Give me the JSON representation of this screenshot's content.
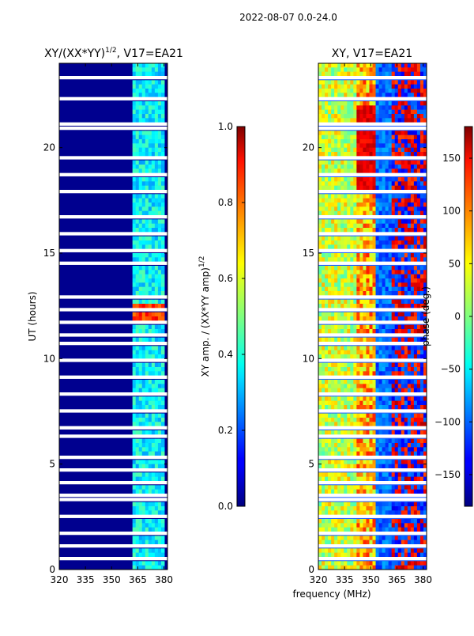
{
  "figure_title": "2022-08-07 0.0-24.0",
  "colors": {
    "band_bg": "#00008f",
    "gap": "#ffffff",
    "axis": "#000000"
  },
  "chart_data": [
    {
      "type": "heatmap",
      "title": "XY/(XX*YY)^1/2, V17=EA21",
      "title_base": "XY/(XX*YY)",
      "title_sup": "1/2",
      "title_tail": ", V17=EA21",
      "xlabel": "",
      "ylabel": "UT (hours)",
      "xlim": [
        320,
        382
      ],
      "ylim": [
        0,
        24
      ],
      "xticks": [
        "320",
        "335",
        "350",
        "365",
        "380"
      ],
      "xtick_values": [
        320,
        335,
        350,
        365,
        380
      ],
      "yticks": [
        "0",
        "5",
        "10",
        "15",
        "20"
      ],
      "ytick_values": [
        0,
        5,
        10,
        15,
        20
      ],
      "colorbar": {
        "label": "XY amp. / (XX*YY amp)^1/2",
        "label_base": "XY amp. / (XX*YY amp)",
        "label_sup": "1/2",
        "range": [
          0.0,
          1.0
        ],
        "ticks": [
          "0.0",
          "0.2",
          "0.4",
          "0.6",
          "0.8",
          "1.0"
        ],
        "tick_values": [
          0.0,
          0.2,
          0.4,
          0.6,
          0.8,
          1.0
        ]
      },
      "notes": "low normalized amplitude below ~362 MHz; higher values (0.3-0.5) in 362-380 MHz; peak ~0.9 near 11.7-12.3 h"
    },
    {
      "type": "heatmap",
      "title": "XY, V17=EA21",
      "xlabel": "frequency (MHz)",
      "ylabel": "",
      "xlim": [
        320,
        382
      ],
      "ylim": [
        0,
        24
      ],
      "xticks": [
        "320",
        "335",
        "350",
        "365",
        "380"
      ],
      "xtick_values": [
        320,
        335,
        350,
        365,
        380
      ],
      "yticks": [
        "0",
        "5",
        "10",
        "15",
        "20"
      ],
      "ytick_values": [
        0,
        5,
        10,
        15,
        20
      ],
      "colorbar": {
        "label": "phase (deg.)",
        "range": [
          -180,
          180
        ],
        "ticks": [
          "−150",
          "−100",
          "−50",
          "0",
          "50",
          "100",
          "150"
        ],
        "tick_values": [
          -150,
          -100,
          -50,
          0,
          50,
          100,
          150
        ]
      },
      "notes": "phase varies with frequency: ~0-60 deg near 330-340 MHz, ~120-180 deg near 340-350 MHz around 20 h, -120 deg elsewhere"
    }
  ]
}
